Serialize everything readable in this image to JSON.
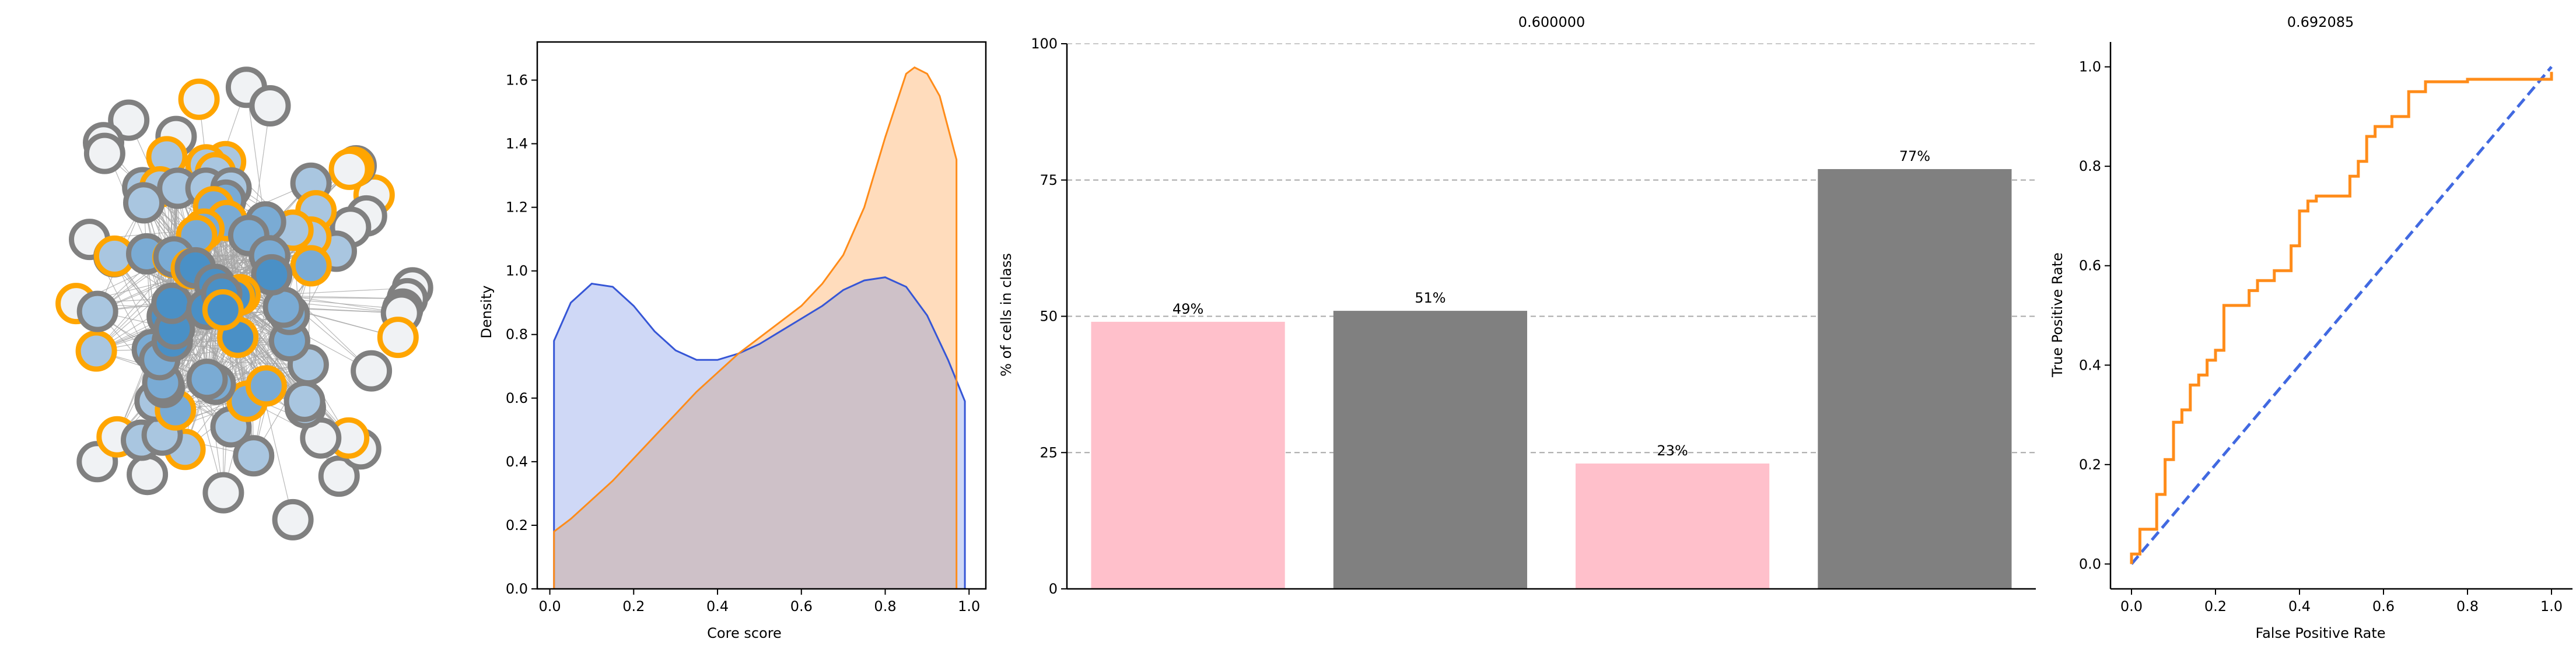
{
  "colors": {
    "periphery_fill": "#f0f2f4",
    "core_fill_light": "#a9c6e0",
    "core_fill_mid": "#7aabd4",
    "core_fill_dark": "#4a90c6",
    "node_edge_gray": "#808080",
    "node_edge_orange": "#ffa500",
    "edge": "#a6a6a6",
    "kde_blue": "#3656d6",
    "kde_blue_fill": "#cfd8f6",
    "kde_orange": "#ff8c1a",
    "kde_orange_fill": "#ffdcbc",
    "kde_overlap": "#cec1c8",
    "bar_pink": "#ffc0cb",
    "bar_gray": "#808080",
    "roc_orange": "#ff8c1a",
    "roc_diag": "#4169e1"
  },
  "chart_data": [
    {
      "type": "network",
      "legend": "none",
      "node_count_visible": 96
    },
    {
      "type": "area",
      "title": "",
      "xlabel": "Core score",
      "ylabel": "Density",
      "xlim": [
        -0.03,
        1.04
      ],
      "ylim": [
        0,
        1.72
      ],
      "xticks": [
        "0.0",
        "0.2",
        "0.4",
        "0.6",
        "0.8",
        "1.0"
      ],
      "yticks": [
        "0.0",
        "0.2",
        "0.4",
        "0.6",
        "0.8",
        "1.0",
        "1.2",
        "1.4",
        "1.6"
      ],
      "grid": false,
      "series": [
        {
          "color": "blue",
          "x": [
            0.01,
            0.05,
            0.1,
            0.15,
            0.2,
            0.25,
            0.3,
            0.35,
            0.4,
            0.45,
            0.5,
            0.55,
            0.6,
            0.65,
            0.7,
            0.75,
            0.8,
            0.85,
            0.9,
            0.95,
            0.99
          ],
          "y": [
            0.78,
            0.9,
            0.96,
            0.95,
            0.89,
            0.81,
            0.75,
            0.72,
            0.72,
            0.74,
            0.77,
            0.81,
            0.85,
            0.89,
            0.94,
            0.97,
            0.98,
            0.95,
            0.86,
            0.72,
            0.59
          ]
        },
        {
          "color": "orange",
          "x": [
            0.01,
            0.05,
            0.1,
            0.15,
            0.2,
            0.25,
            0.3,
            0.35,
            0.4,
            0.45,
            0.5,
            0.55,
            0.6,
            0.65,
            0.7,
            0.75,
            0.8,
            0.85,
            0.87,
            0.9,
            0.93,
            0.96,
            0.97
          ],
          "y": [
            0.18,
            0.22,
            0.28,
            0.34,
            0.41,
            0.48,
            0.55,
            0.62,
            0.68,
            0.74,
            0.79,
            0.84,
            0.89,
            0.96,
            1.05,
            1.2,
            1.42,
            1.62,
            1.64,
            1.62,
            1.55,
            1.4,
            1.35
          ]
        }
      ]
    },
    {
      "type": "bar",
      "title": "0.600000",
      "xlabel": "",
      "ylabel": "% of cells in class",
      "ylim": [
        0,
        100
      ],
      "yticks": [
        "0",
        "25",
        "50",
        "75",
        "100"
      ],
      "grid": "horizontal dashed",
      "categories": [
        "",
        "",
        "",
        ""
      ],
      "values": [
        49,
        51,
        23,
        77
      ],
      "data_labels": [
        "49%",
        "51%",
        "23%",
        "77%"
      ],
      "bar_colors": [
        "pink",
        "gray",
        "pink",
        "gray"
      ]
    },
    {
      "type": "line",
      "title": "0.692085",
      "xlabel": "False Positive Rate",
      "ylabel": "True Positive Rate",
      "xlim": [
        -0.05,
        1.05
      ],
      "ylim": [
        -0.05,
        1.05
      ],
      "xticks": [
        "0.0",
        "0.2",
        "0.4",
        "0.6",
        "0.8",
        "1.0"
      ],
      "yticks": [
        "0.0",
        "0.2",
        "0.4",
        "0.6",
        "0.8",
        "1.0"
      ],
      "grid": false,
      "series": [
        {
          "style": "step",
          "x": [
            0,
            0,
            0.02,
            0.02,
            0.06,
            0.06,
            0.08,
            0.08,
            0.1,
            0.1,
            0.12,
            0.12,
            0.14,
            0.14,
            0.16,
            0.16,
            0.18,
            0.18,
            0.2,
            0.2,
            0.22,
            0.22,
            0.28,
            0.28,
            0.3,
            0.3,
            0.34,
            0.34,
            0.38,
            0.38,
            0.4,
            0.4,
            0.42,
            0.42,
            0.44,
            0.44,
            0.52,
            0.52,
            0.54,
            0.54,
            0.56,
            0.56,
            0.58,
            0.58,
            0.62,
            0.62,
            0.66,
            0.66,
            0.7,
            0.7,
            0.8,
            0.8,
            1.0,
            1.0
          ],
          "y": [
            0,
            0.02,
            0.02,
            0.07,
            0.07,
            0.14,
            0.14,
            0.21,
            0.21,
            0.285,
            0.285,
            0.31,
            0.31,
            0.36,
            0.36,
            0.38,
            0.38,
            0.41,
            0.41,
            0.43,
            0.43,
            0.52,
            0.52,
            0.55,
            0.55,
            0.57,
            0.57,
            0.59,
            0.59,
            0.64,
            0.64,
            0.71,
            0.71,
            0.73,
            0.73,
            0.74,
            0.74,
            0.78,
            0.78,
            0.81,
            0.81,
            0.86,
            0.86,
            0.88,
            0.88,
            0.9,
            0.9,
            0.95,
            0.95,
            0.97,
            0.97,
            0.975,
            0.975,
            0.99
          ]
        },
        {
          "style": "dashed",
          "x": [
            0,
            1
          ],
          "y": [
            0,
            1
          ]
        }
      ]
    }
  ]
}
